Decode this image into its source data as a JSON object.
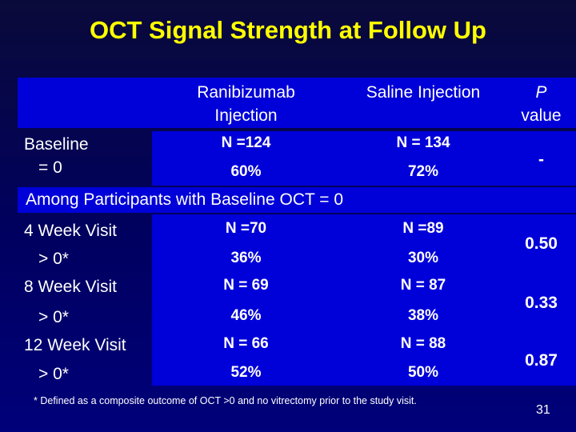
{
  "title": "OCT Signal Strength at Follow Up",
  "header": {
    "col_ranibizumab": [
      "Ranibizumab",
      "Injection"
    ],
    "col_saline": "Saline Injection",
    "col_p": [
      "P",
      "value"
    ]
  },
  "baseline": {
    "label": [
      "Baseline",
      "= 0"
    ],
    "n_ranibizumab": "N =124",
    "n_saline": "N = 134",
    "pct_ranibizumab": "60%",
    "pct_saline": "72%",
    "p_value": "-"
  },
  "section_title": "Among Participants with Baseline OCT = 0",
  "visits": [
    {
      "label": "4 Week Visit",
      "sub": "> 0*",
      "n_ranibizumab": "N =70",
      "n_saline": "N =89",
      "pct_ranibizumab": "36%",
      "pct_saline": "30%",
      "p_value": "0.50"
    },
    {
      "label": "8 Week Visit",
      "sub": "> 0*",
      "n_ranibizumab": "N = 69",
      "n_saline": "N = 87",
      "pct_ranibizumab": "46%",
      "pct_saline": "38%",
      "p_value": "0.33"
    },
    {
      "label": "12 Week Visit",
      "sub": "> 0*",
      "n_ranibizumab": "N = 66",
      "n_saline": "N = 88",
      "pct_ranibizumab": "52%",
      "pct_saline": "50%",
      "p_value": "0.87"
    }
  ],
  "footnote": "* Defined as a composite outcome of OCT >0 and no vitrectomy prior to  the study visit.",
  "page_number": "31"
}
